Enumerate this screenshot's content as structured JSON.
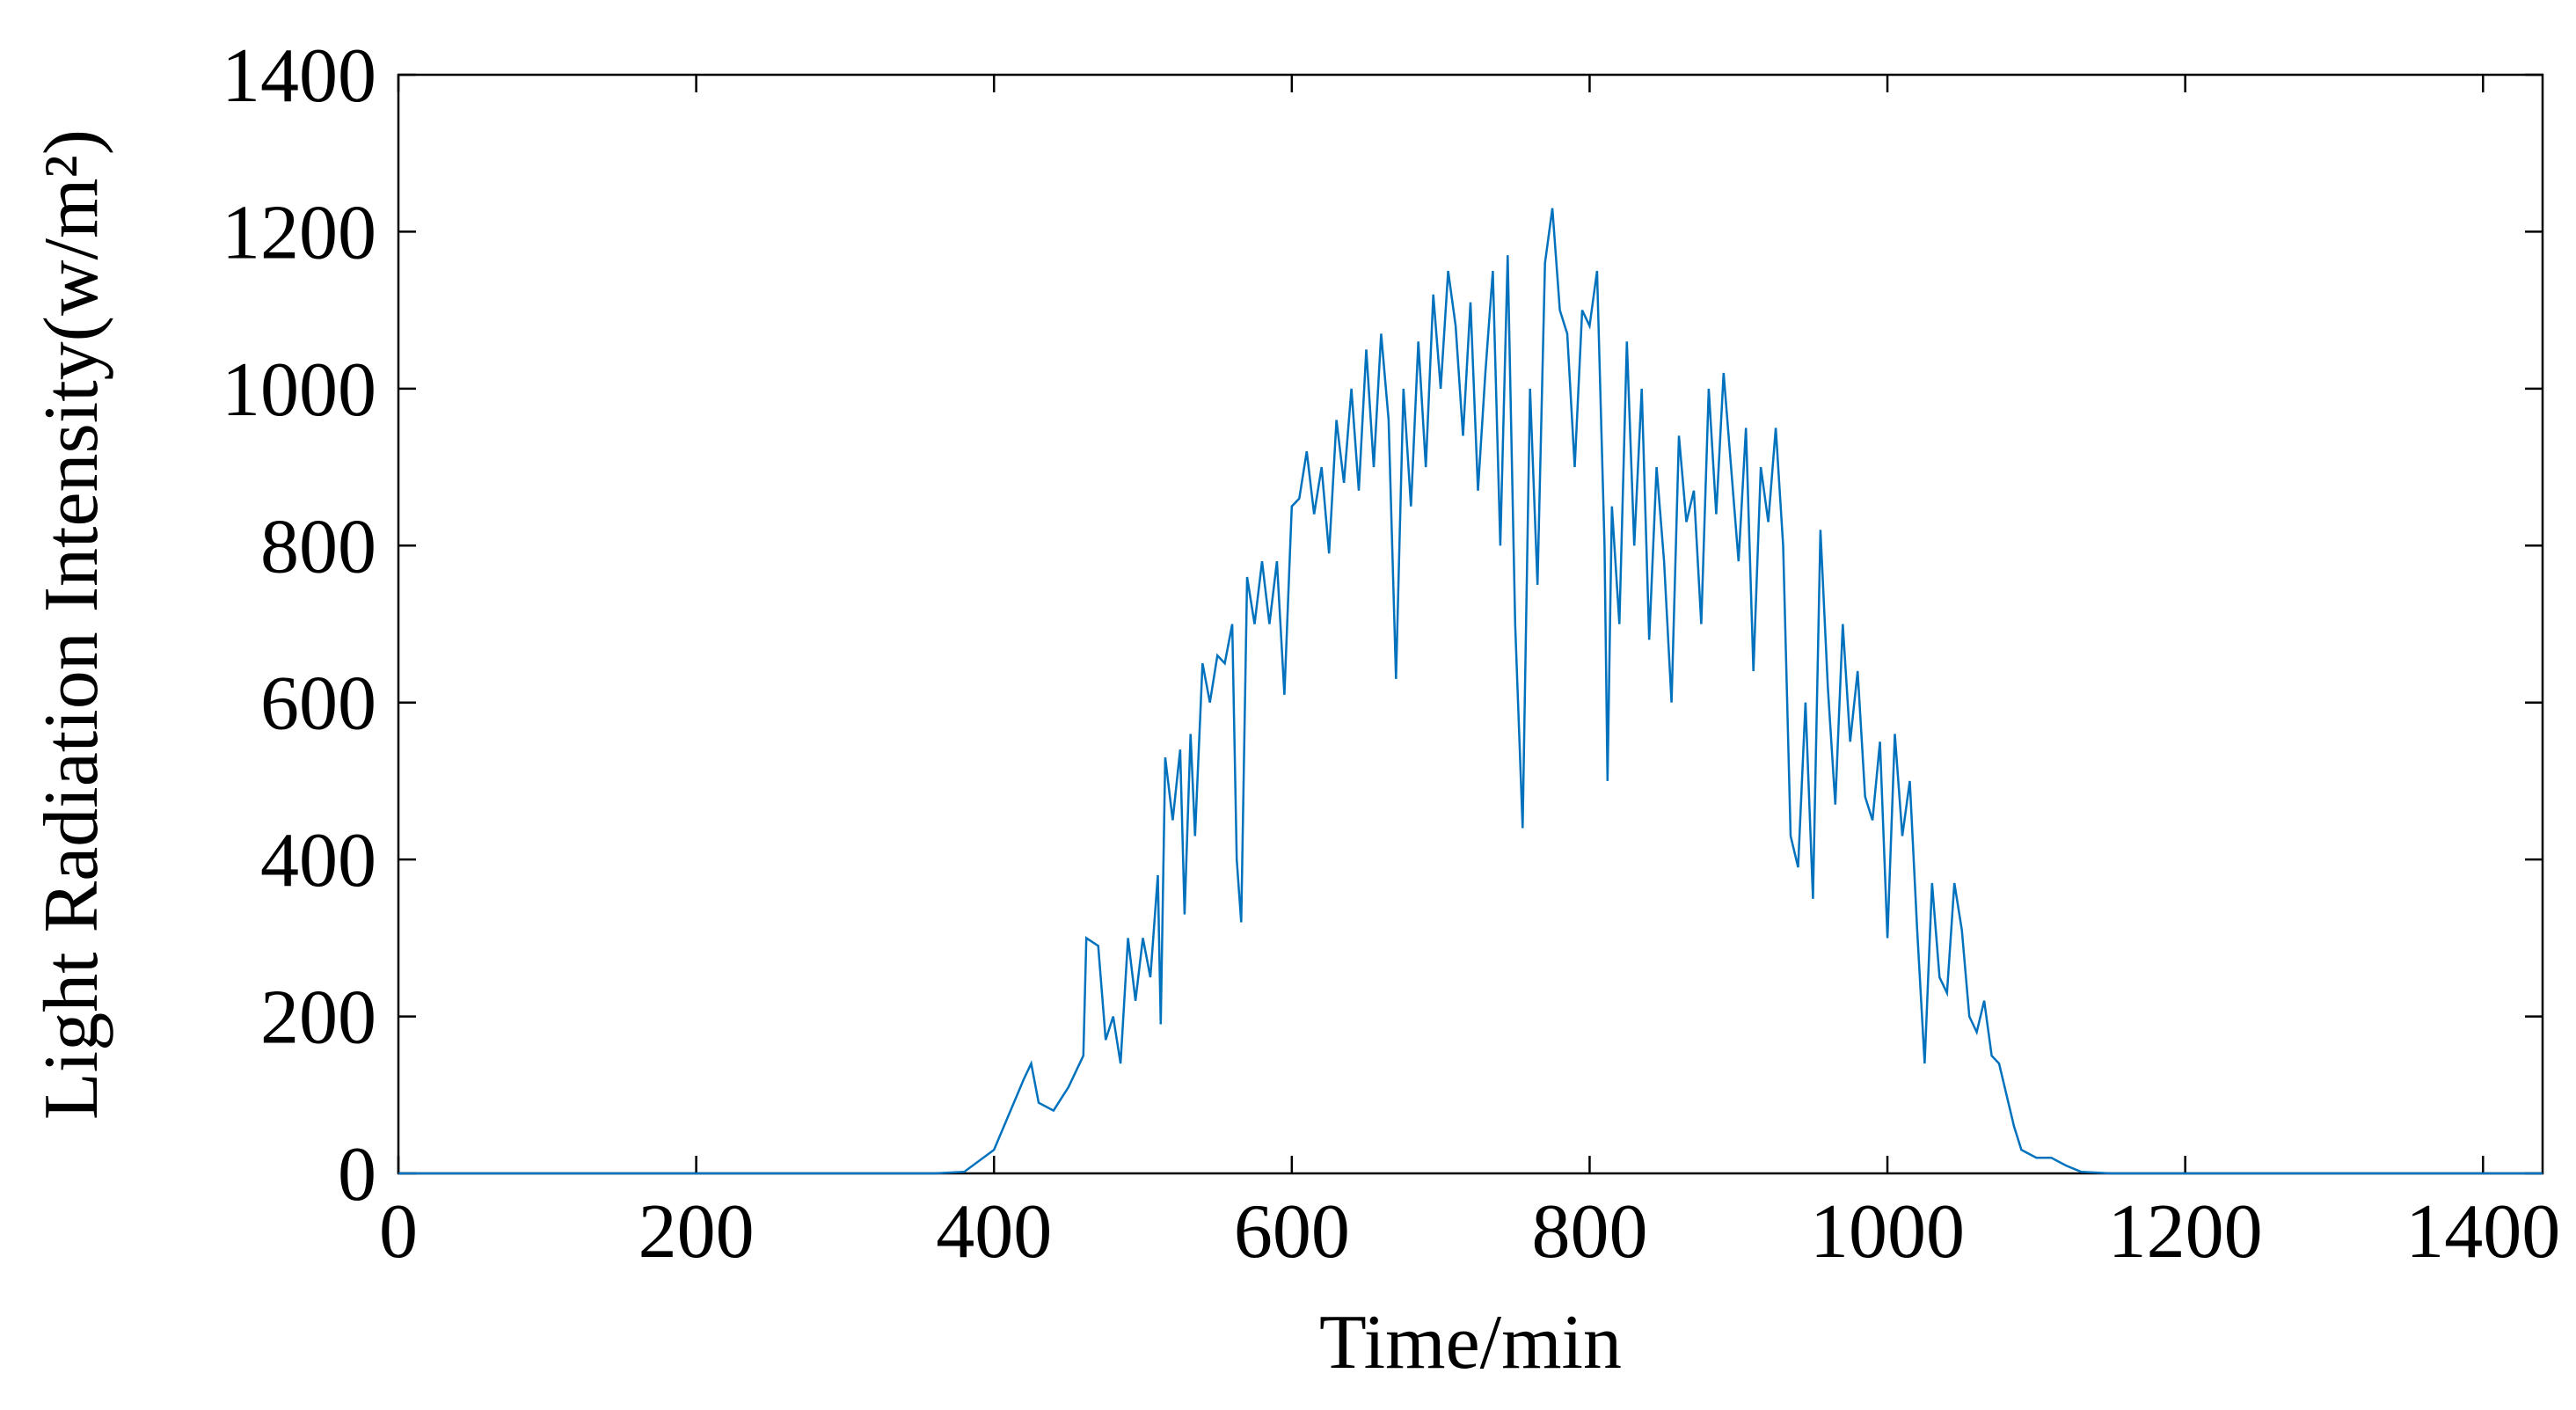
{
  "chart_data": {
    "type": "line",
    "x_label": "Time/min",
    "y_label": "Light Radiation Intensity(w/m²)",
    "xlim": [
      0,
      1440
    ],
    "ylim": [
      0,
      1400
    ],
    "xticks": [
      0,
      200,
      400,
      600,
      800,
      1000,
      1200,
      1400
    ],
    "yticks": [
      0,
      200,
      400,
      600,
      800,
      1000,
      1200,
      1400
    ],
    "x": [
      0,
      360,
      380,
      400,
      420,
      425,
      430,
      440,
      450,
      460,
      462,
      470,
      475,
      480,
      485,
      490,
      495,
      500,
      505,
      510,
      512,
      515,
      520,
      525,
      528,
      532,
      535,
      540,
      545,
      550,
      555,
      560,
      563,
      566,
      570,
      575,
      580,
      585,
      590,
      595,
      600,
      605,
      610,
      615,
      620,
      625,
      630,
      635,
      640,
      645,
      650,
      655,
      660,
      665,
      670,
      675,
      680,
      685,
      690,
      695,
      700,
      705,
      710,
      715,
      720,
      725,
      730,
      735,
      740,
      745,
      750,
      755,
      760,
      765,
      770,
      775,
      780,
      785,
      790,
      795,
      800,
      805,
      810,
      812,
      815,
      820,
      825,
      830,
      835,
      840,
      845,
      850,
      855,
      860,
      865,
      870,
      875,
      880,
      885,
      890,
      895,
      900,
      905,
      910,
      915,
      920,
      925,
      930,
      935,
      940,
      945,
      950,
      955,
      960,
      965,
      970,
      975,
      980,
      985,
      990,
      995,
      1000,
      1005,
      1010,
      1015,
      1020,
      1025,
      1030,
      1035,
      1040,
      1045,
      1050,
      1055,
      1060,
      1065,
      1070,
      1075,
      1080,
      1085,
      1090,
      1100,
      1110,
      1120,
      1130,
      1150,
      1440
    ],
    "series": [
      {
        "color": "#0072BD",
        "values": [
          0,
          0,
          2,
          30,
          120,
          140,
          90,
          80,
          110,
          150,
          300,
          290,
          170,
          200,
          140,
          300,
          220,
          300,
          250,
          380,
          190,
          530,
          450,
          540,
          330,
          560,
          430,
          650,
          600,
          660,
          650,
          700,
          400,
          320,
          760,
          700,
          780,
          700,
          780,
          610,
          850,
          860,
          920,
          840,
          900,
          790,
          960,
          880,
          1000,
          870,
          1050,
          900,
          1070,
          960,
          630,
          1000,
          850,
          1060,
          900,
          1120,
          1000,
          1150,
          1080,
          940,
          1110,
          870,
          1020,
          1150,
          800,
          1170,
          700,
          440,
          1000,
          750,
          1160,
          1230,
          1100,
          1070,
          900,
          1100,
          1080,
          1150,
          800,
          500,
          850,
          700,
          1060,
          800,
          1000,
          680,
          900,
          780,
          600,
          940,
          830,
          870,
          700,
          1000,
          840,
          1020,
          900,
          780,
          950,
          640,
          900,
          830,
          950,
          800,
          430,
          390,
          600,
          350,
          820,
          620,
          470,
          700,
          550,
          640,
          480,
          450,
          550,
          300,
          560,
          430,
          500,
          310,
          140,
          370,
          250,
          230,
          370,
          310,
          200,
          180,
          220,
          150,
          140,
          100,
          60,
          30,
          20,
          20,
          10,
          2,
          0,
          0
        ]
      }
    ]
  }
}
